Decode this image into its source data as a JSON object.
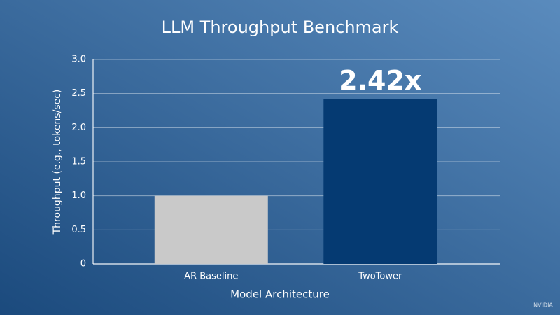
{
  "chart_data": {
    "type": "bar",
    "title": "LLM Throughput Benchmark",
    "x_label": "Model Architecture",
    "y_label": "Throughput (e.g., tokens/sec)",
    "categories": [
      "AR Baseline",
      "TwoTower"
    ],
    "values": [
      1.0,
      2.42
    ],
    "value_labels": [
      null,
      "2.42x"
    ],
    "colors": [
      "#c9c9c9",
      "#053a72"
    ],
    "ylim": [
      0,
      3
    ],
    "yticks": [
      0,
      0.5,
      {
        "value": 1,
        "label": "1.0"
      },
      1.5,
      {
        "value": 2,
        "label": "2.0"
      },
      2.5,
      {
        "value": 3,
        "label": "3.0"
      }
    ],
    "grid": true
  },
  "watermark": "NVIDIA"
}
